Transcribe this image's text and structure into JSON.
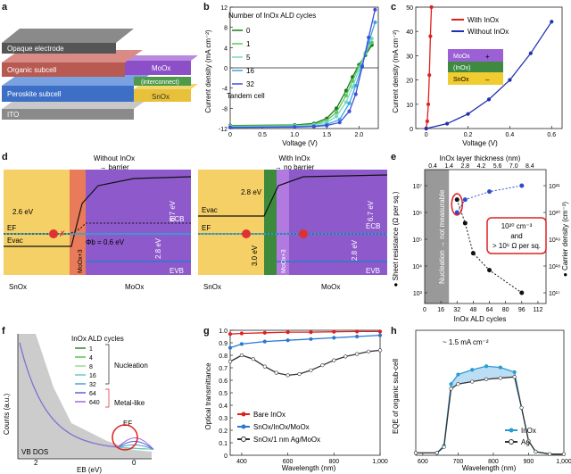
{
  "panel_labels": {
    "a": "a",
    "b": "b",
    "c": "c",
    "d": "d",
    "e": "e",
    "f": "f",
    "g": "g",
    "h": "h"
  },
  "panel_a": {
    "layers": [
      "Opaque electrode",
      "Organic subcell",
      "Peroskite subcell",
      "ITO",
      "MoOx",
      "(interconnect)",
      "SnOx"
    ]
  },
  "panel_b": {
    "legend_title": "Number of InOx ALD cycles",
    "legend_note": "Tandem cell",
    "xlabel": "Voltage (V)",
    "ylabel": "Current density (mA cm⁻²)",
    "xticks": [
      "0",
      "0.5",
      "1.0",
      "1.5",
      "2.0"
    ],
    "yticks": [
      "12",
      "8",
      "4",
      "0",
      "-4",
      "-8",
      "-12"
    ],
    "colors": [
      "#1a7a1a",
      "#5cc85c",
      "#7ad7c9",
      "#3aa6e0",
      "#3f4fd8"
    ],
    "chart_data": {
      "type": "line",
      "xlabel": "Voltage (V)",
      "ylabel": "Current density (mA cm⁻²)",
      "xlim": [
        0,
        2.3
      ],
      "ylim": [
        -12,
        12
      ],
      "series": [
        {
          "name": "0",
          "x": [
            0,
            1.0,
            1.3,
            1.5,
            1.65,
            1.8,
            1.9,
            2.0,
            2.1,
            2.2
          ],
          "y": [
            -11.4,
            -11.3,
            -11.0,
            -10.0,
            -8.0,
            -4.5,
            -1.8,
            0.6,
            2.5,
            4.5
          ]
        },
        {
          "name": "1",
          "x": [
            0,
            1.0,
            1.3,
            1.5,
            1.65,
            1.8,
            1.9,
            2.0,
            2.1,
            2.2
          ],
          "y": [
            -11.5,
            -11.4,
            -11.2,
            -10.4,
            -8.8,
            -5.5,
            -2.6,
            0.2,
            2.8,
            5.0
          ]
        },
        {
          "name": "5",
          "x": [
            0,
            1.0,
            1.3,
            1.5,
            1.65,
            1.8,
            1.9,
            2.0,
            2.1,
            2.2
          ],
          "y": [
            -11.6,
            -11.5,
            -11.3,
            -10.8,
            -9.6,
            -6.8,
            -3.8,
            -0.4,
            3.0,
            5.8
          ]
        },
        {
          "name": "16",
          "x": [
            0,
            1.0,
            1.3,
            1.5,
            1.7,
            1.85,
            1.95,
            2.05,
            2.15,
            2.25
          ],
          "y": [
            -11.7,
            -11.6,
            -11.5,
            -11.2,
            -10.2,
            -7.0,
            -3.5,
            0.5,
            5.0,
            9.0
          ]
        },
        {
          "name": "32",
          "x": [
            0,
            1.0,
            1.3,
            1.5,
            1.7,
            1.85,
            1.95,
            2.05,
            2.15,
            2.25
          ],
          "y": [
            -11.8,
            -11.7,
            -11.6,
            -11.4,
            -10.8,
            -8.6,
            -5.2,
            0.2,
            6.0,
            11.5
          ]
        }
      ]
    }
  },
  "panel_c": {
    "legend": [
      "With InOx",
      "Without InOx"
    ],
    "xlabel": "Voltage (V)",
    "ylabel": "Current density (mA cm⁻²)",
    "xticks": [
      "0",
      "0.2",
      "0.4",
      "0.6"
    ],
    "yticks": [
      "50",
      "40",
      "30",
      "20",
      "10",
      "0"
    ],
    "inset": [
      "MoOx",
      "(InOx)",
      "SnOx"
    ],
    "inset_signs": [
      "+",
      "–"
    ],
    "chart_data": {
      "type": "line",
      "xlim": [
        -0.05,
        0.65
      ],
      "ylim": [
        0,
        50
      ],
      "series": [
        {
          "name": "With InOx",
          "x": [
            0,
            0.005,
            0.01,
            0.015,
            0.02,
            0.025
          ],
          "y": [
            0,
            3,
            10,
            22,
            38,
            50
          ]
        },
        {
          "name": "Without InOx",
          "x": [
            0,
            0.1,
            0.2,
            0.3,
            0.4,
            0.5,
            0.6
          ],
          "y": [
            0,
            2,
            6,
            12,
            20,
            31,
            44
          ]
        }
      ]
    }
  },
  "panel_d": {
    "left_title": "Without InOx",
    "left_sub": "→ barrier",
    "right_title": "With InOx",
    "right_sub": "→ no barrier",
    "left_labels": {
      "evac": "Evac",
      "ef": "EF",
      "e26": "2.6 eV",
      "phi": "Φb = 0.6 eV",
      "e67": "6.7 eV",
      "ecb": "ECB",
      "e28": "2.8 eV",
      "evb": "EVB",
      "moo": "MoOx+3",
      "snox": "SnOx",
      "mooxb": "MoOx"
    },
    "right_labels": {
      "evac": "Evac",
      "ef": "EF",
      "e28a": "2.8 eV",
      "e67": "6.7 eV",
      "e30": "3.0 eV",
      "e28b": "2.8 eV",
      "ecb": "ECB",
      "evb": "EVB",
      "moo": "MoOx+3",
      "ino": "InOx",
      "snox": "SnOx",
      "mooxb": "MoOx"
    }
  },
  "panel_e": {
    "top_label": "InOx layer thickness (nm)",
    "top_ticks": [
      "0.4",
      "1.4",
      "2.8",
      "4.2",
      "5.6",
      "7.0",
      "8.4"
    ],
    "xlabel": "InOx ALD cycles",
    "xticks": [
      "0",
      "16",
      "32",
      "48",
      "64",
      "80",
      "96",
      "112"
    ],
    "ylabel_left": "● Sheet resistance (Ω per sq.)",
    "ylabel_right": "● Carrier density (cm⁻³)",
    "yticks_left": [
      "10⁷",
      "10⁶",
      "10⁵",
      "10⁴",
      "10³"
    ],
    "yticks_right": [
      "10²¹",
      "10²⁰",
      "10¹⁹",
      "10¹⁸",
      "10¹⁷"
    ],
    "shade_label": "Nucleation → not measurable",
    "callout": [
      "10²⁰ cm⁻³",
      "and",
      "> 10⁶ Ω per sq."
    ],
    "chart_data": {
      "type": "scatter",
      "series": [
        {
          "name": "Sheet resistance",
          "x": [
            32,
            40,
            48,
            64,
            96
          ],
          "y": [
            3000000,
            400000,
            30000,
            7000,
            1000
          ]
        },
        {
          "name": "Carrier density",
          "x": [
            32,
            40,
            64,
            96
          ],
          "y": [
            1e+20,
            3e+20,
            6e+20,
            1e+21
          ]
        }
      ]
    }
  },
  "panel_f": {
    "legend_title": "InOx ALD cycles",
    "entries": [
      "1",
      "4",
      "8",
      "16",
      "32",
      "64",
      "640"
    ],
    "colors": [
      "#2a8a3a",
      "#59c25a",
      "#9fd88a",
      "#6fc6c6",
      "#46a2dc",
      "#5b63d6",
      "#9a6ad8"
    ],
    "group1": "Nucleation",
    "group2": "Metal-like",
    "ef": "EF",
    "vb": "VB DOS",
    "ylabel": "Counts (a.u.)",
    "xlabel": "EB (eV)",
    "xticks": [
      "2",
      "0"
    ]
  },
  "panel_g": {
    "ylabel": "Optical transmittance",
    "xlabel": "Wavelength (nm)",
    "yticks": [
      "1.0",
      "0.9",
      "0.8",
      "0.7",
      "0.6",
      "0.5",
      "0.4",
      "0.3",
      "0.2",
      "0.1",
      "0"
    ],
    "xticks": [
      "400",
      "600",
      "800",
      "1,000"
    ],
    "legend": [
      "Bare InOx",
      "SnOx/InOx/MoOx",
      "SnOx/1 nm Ag/MoOx"
    ],
    "chart_data": {
      "type": "line",
      "xlim": [
        350,
        1000
      ],
      "ylim": [
        0,
        1
      ],
      "series": [
        {
          "name": "Bare InOx",
          "x": [
            350,
            400,
            500,
            600,
            700,
            800,
            900,
            1000
          ],
          "y": [
            0.97,
            0.975,
            0.98,
            0.985,
            0.985,
            0.988,
            0.99,
            0.99
          ]
        },
        {
          "name": "SnOx/InOx/MoOx",
          "x": [
            350,
            400,
            500,
            600,
            700,
            800,
            900,
            1000
          ],
          "y": [
            0.86,
            0.89,
            0.91,
            0.92,
            0.93,
            0.94,
            0.95,
            0.96
          ]
        },
        {
          "name": "SnOx/1 nm Ag/MoOx",
          "x": [
            350,
            400,
            450,
            500,
            550,
            600,
            650,
            700,
            750,
            800,
            850,
            900,
            950,
            1000
          ],
          "y": [
            0.75,
            0.8,
            0.77,
            0.71,
            0.66,
            0.64,
            0.65,
            0.68,
            0.72,
            0.76,
            0.79,
            0.81,
            0.83,
            0.84
          ]
        }
      ]
    }
  },
  "panel_h": {
    "ylabel": "EQE of organic sub-cell",
    "xlabel": "Wavelength (nm)",
    "xticks": [
      "600",
      "700",
      "800",
      "900",
      "1,000"
    ],
    "annotation": "~ 1.5 mA cm⁻²",
    "legend": [
      "InOx",
      "Ag"
    ],
    "chart_data": {
      "type": "line",
      "xlim": [
        580,
        1000
      ],
      "series": [
        {
          "name": "InOx",
          "x": [
            580,
            640,
            660,
            680,
            700,
            740,
            780,
            820,
            860,
            880,
            900,
            920,
            960,
            1000
          ],
          "y": [
            0.02,
            0.02,
            0.08,
            0.6,
            0.68,
            0.72,
            0.75,
            0.74,
            0.7,
            0.4,
            0.12,
            0.03,
            0.01,
            0.01
          ]
        },
        {
          "name": "Ag",
          "x": [
            580,
            640,
            660,
            680,
            700,
            740,
            780,
            820,
            860,
            880,
            900,
            920,
            960,
            1000
          ],
          "y": [
            0.02,
            0.02,
            0.07,
            0.56,
            0.6,
            0.62,
            0.64,
            0.65,
            0.66,
            0.4,
            0.12,
            0.03,
            0.01,
            0.01
          ]
        }
      ]
    }
  }
}
